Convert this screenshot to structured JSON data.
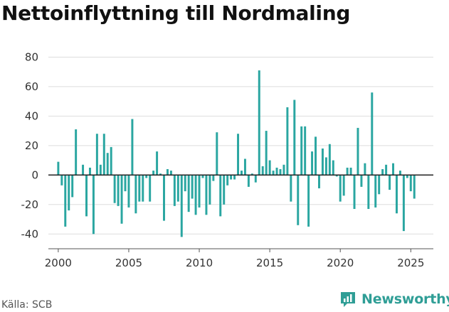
{
  "title": "Nettoinflyttning till Nordmaling",
  "source": "Källa: SCB",
  "brand": {
    "name": "Newsworthy",
    "icon": "newsworthy-logo-icon"
  },
  "colors": {
    "bars": "#2aa6a1",
    "zero_line": "#222222",
    "grid": "#dddddd",
    "axis_text": "#333333",
    "brand": "#2f9e96"
  },
  "chart_data": {
    "type": "bar",
    "title": "Nettoinflyttning till Nordmaling",
    "xlabel": "",
    "ylabel": "",
    "xlim": [
      1999.3,
      2026.6
    ],
    "ylim": [
      -50,
      85
    ],
    "y_ticks": [
      -40,
      -20,
      0,
      20,
      40,
      60,
      80
    ],
    "x_ticks": [
      2000,
      2005,
      2010,
      2015,
      2020,
      2025
    ],
    "grid": true,
    "x": [
      2000.0,
      2000.25,
      2000.5,
      2000.75,
      2001.0,
      2001.25,
      2001.5,
      2001.75,
      2002.0,
      2002.25,
      2002.5,
      2002.75,
      2003.0,
      2003.25,
      2003.5,
      2003.75,
      2004.0,
      2004.25,
      2004.5,
      2004.75,
      2005.0,
      2005.25,
      2005.5,
      2005.75,
      2006.0,
      2006.25,
      2006.5,
      2006.75,
      2007.0,
      2007.25,
      2007.5,
      2007.75,
      2008.0,
      2008.25,
      2008.5,
      2008.75,
      2009.0,
      2009.25,
      2009.5,
      2009.75,
      2010.0,
      2010.25,
      2010.5,
      2010.75,
      2011.0,
      2011.25,
      2011.5,
      2011.75,
      2012.0,
      2012.25,
      2012.5,
      2012.75,
      2013.0,
      2013.25,
      2013.5,
      2013.75,
      2014.0,
      2014.25,
      2014.5,
      2014.75,
      2015.0,
      2015.25,
      2015.5,
      2015.75,
      2016.0,
      2016.25,
      2016.5,
      2016.75,
      2017.0,
      2017.25,
      2017.5,
      2017.75,
      2018.0,
      2018.25,
      2018.5,
      2018.75,
      2019.0,
      2019.25,
      2019.5,
      2019.75,
      2020.0,
      2020.25,
      2020.5,
      2020.75,
      2021.0,
      2021.25,
      2021.5,
      2021.75,
      2022.0,
      2022.25,
      2022.5,
      2022.75,
      2023.0,
      2023.25,
      2023.5,
      2023.75,
      2024.0,
      2024.25,
      2024.5,
      2024.75,
      2025.0,
      2025.25,
      2025.5
    ],
    "values": [
      9,
      -7,
      -35,
      -24,
      -15,
      31,
      0,
      7,
      -28,
      5,
      -40,
      28,
      7,
      28,
      15,
      19,
      -19,
      -21,
      -33,
      -11,
      -22,
      38,
      -26,
      -18,
      -18,
      -2,
      -18,
      3,
      16,
      1,
      -31,
      4,
      3,
      -21,
      -18,
      -42,
      -11,
      -25,
      -16,
      -27,
      -22,
      -2,
      -27,
      -20,
      -4,
      29,
      -28,
      -20,
      -7,
      -3,
      -3,
      28,
      3,
      11,
      -8,
      1,
      -5,
      71,
      6,
      30,
      10,
      3,
      5,
      4,
      7,
      46,
      -18,
      51,
      -34,
      33,
      33,
      -35,
      16,
      26,
      -9,
      18,
      12,
      21,
      10,
      -1,
      -18,
      -14,
      5,
      5,
      -23,
      32,
      -8,
      8,
      -23,
      56,
      -22,
      -13,
      4,
      7,
      -10,
      8,
      -26,
      3,
      -38,
      -2,
      -11,
      -16,
      0
    ]
  }
}
